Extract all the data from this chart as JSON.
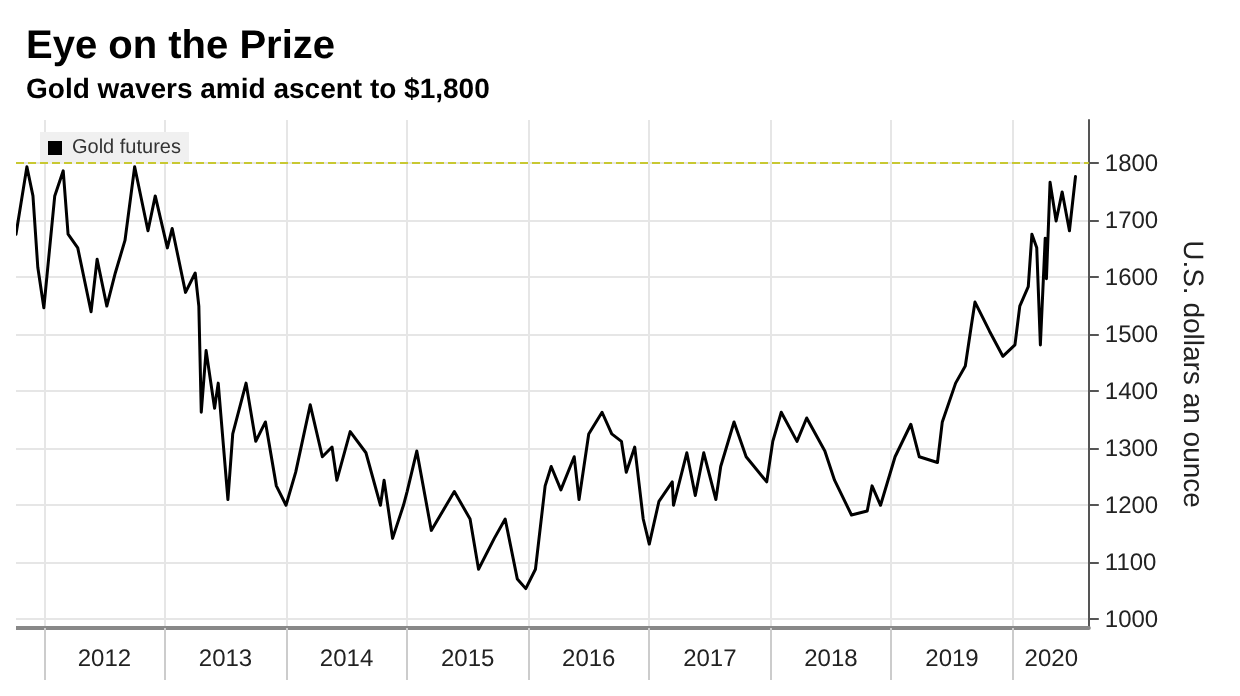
{
  "chart_data": {
    "type": "line",
    "title": "Eye on the Prize",
    "subtitle": "Gold wavers amid ascent to $1,800",
    "ylabel": "U.S. dollars an ounce",
    "x": [
      2011.77,
      2011.86,
      2011.91,
      2011.95,
      2012.0,
      2012.09,
      2012.16,
      2012.2,
      2012.28,
      2012.39,
      2012.44,
      2012.52,
      2012.59,
      2012.67,
      2012.75,
      2012.86,
      2012.92,
      2013.02,
      2013.06,
      2013.17,
      2013.25,
      2013.28,
      2013.3,
      2013.34,
      2013.41,
      2013.44,
      2013.52,
      2013.56,
      2013.67,
      2013.75,
      2013.83,
      2013.92,
      2014.0,
      2014.08,
      2014.2,
      2014.3,
      2014.38,
      2014.42,
      2014.53,
      2014.66,
      2014.78,
      2014.81,
      2014.88,
      2014.97,
      2015.0,
      2015.08,
      2015.2,
      2015.39,
      2015.52,
      2015.59,
      2015.72,
      2015.81,
      2015.91,
      2015.98,
      2016.06,
      2016.14,
      2016.19,
      2016.27,
      2016.38,
      2016.42,
      2016.5,
      2016.61,
      2016.69,
      2016.77,
      2016.81,
      2016.88,
      2016.95,
      2017.0,
      2017.08,
      2017.19,
      2017.2,
      2017.31,
      2017.38,
      2017.45,
      2017.55,
      2017.59,
      2017.7,
      2017.8,
      2017.97,
      2018.02,
      2018.09,
      2018.22,
      2018.3,
      2018.45,
      2018.53,
      2018.67,
      2018.8,
      2018.84,
      2018.91,
      2019.03,
      2019.16,
      2019.23,
      2019.38,
      2019.42,
      2019.53,
      2019.61,
      2019.66,
      2019.69,
      2019.81,
      2019.92,
      2020.02,
      2020.06,
      2020.13,
      2020.16,
      2020.2,
      2020.23,
      2020.27,
      2020.28,
      2020.31,
      2020.36,
      2020.41,
      2020.47,
      2020.52
    ],
    "series": [
      {
        "name": "Gold futures",
        "color": "#000000",
        "values": [
          1675,
          1793,
          1742,
          1617,
          1546,
          1742,
          1786,
          1675,
          1651,
          1539,
          1631,
          1549,
          1607,
          1664,
          1793,
          1681,
          1742,
          1651,
          1685,
          1573,
          1607,
          1549,
          1363,
          1471,
          1370,
          1414,
          1210,
          1325,
          1414,
          1312,
          1346,
          1234,
          1200,
          1258,
          1376,
          1285,
          1302,
          1244,
          1329,
          1292,
          1200,
          1244,
          1142,
          1200,
          1224,
          1295,
          1156,
          1224,
          1176,
          1088,
          1142,
          1176,
          1071,
          1054,
          1088,
          1234,
          1268,
          1227,
          1285,
          1210,
          1325,
          1363,
          1325,
          1312,
          1258,
          1302,
          1176,
          1132,
          1207,
          1241,
          1200,
          1292,
          1217,
          1292,
          1210,
          1268,
          1346,
          1285,
          1241,
          1312,
          1363,
          1312,
          1353,
          1295,
          1244,
          1183,
          1190,
          1234,
          1200,
          1285,
          1342,
          1285,
          1275,
          1346,
          1414,
          1444,
          1515,
          1556,
          1505,
          1461,
          1481,
          1549,
          1583,
          1675,
          1651,
          1481,
          1668,
          1597,
          1766,
          1698,
          1749,
          1681,
          1776
        ]
      }
    ],
    "xlim": [
      2011.77,
      2020.63
    ],
    "xticks": [
      {
        "value": 2012,
        "label": null
      },
      {
        "value": 2012.5,
        "label": "2012"
      },
      {
        "value": 2013,
        "label": null
      },
      {
        "value": 2013.5,
        "label": "2013"
      },
      {
        "value": 2014,
        "label": null
      },
      {
        "value": 2014.5,
        "label": "2014"
      },
      {
        "value": 2015,
        "label": null
      },
      {
        "value": 2015.5,
        "label": "2015"
      },
      {
        "value": 2016,
        "label": null
      },
      {
        "value": 2016.5,
        "label": "2016"
      },
      {
        "value": 2017,
        "label": null
      },
      {
        "value": 2017.5,
        "label": "2017"
      },
      {
        "value": 2018,
        "label": null
      },
      {
        "value": 2018.5,
        "label": "2018"
      },
      {
        "value": 2019,
        "label": null
      },
      {
        "value": 2019.5,
        "label": "2019"
      },
      {
        "value": 2020,
        "label": null
      },
      {
        "value": 2020.32,
        "label": "2020"
      }
    ],
    "ylim": [
      985,
      1875
    ],
    "yticks": [
      1000,
      1100,
      1200,
      1300,
      1400,
      1500,
      1600,
      1700,
      1800
    ],
    "ref_lines": [
      {
        "axis": "y",
        "value": 1800,
        "label": null,
        "color": "#c8c832",
        "line_style": "dashed"
      }
    ],
    "grid": true,
    "legend": "top left",
    "marker": "none",
    "line_style": "solid"
  }
}
